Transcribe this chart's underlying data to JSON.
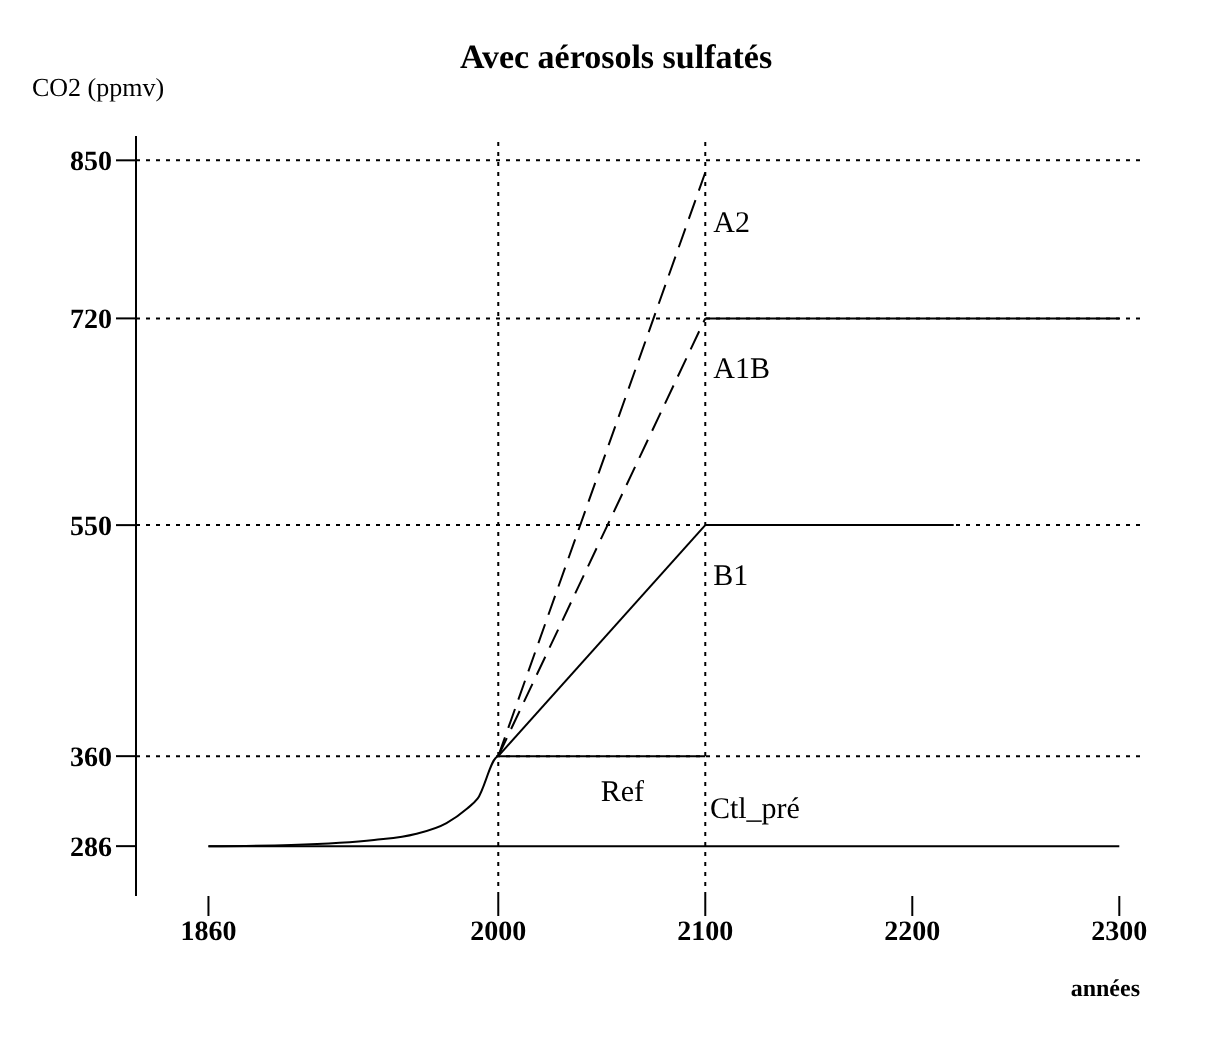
{
  "chart_data": {
    "type": "line",
    "title": "Avec aérosols sulfatés",
    "xlabel": "années",
    "ylabel": "CO2 (ppmv)",
    "xlim": [
      1825,
      2310
    ],
    "xticks": [
      1860,
      2000,
      2100,
      2200,
      2300
    ],
    "ylim": [
      245,
      870
    ],
    "yticks": [
      286,
      360,
      550,
      720,
      850
    ],
    "series": [
      {
        "name": "Ctl_pré",
        "color": "#000000",
        "x": [
          1860,
          2300
        ],
        "values": [
          286,
          286
        ],
        "line_style": "solid"
      },
      {
        "name": "Ref",
        "color": "#000000",
        "x": [
          1860,
          1900,
          1940,
          1960,
          1975,
          1985,
          1990,
          2000,
          2100
        ],
        "values": [
          286,
          287,
          291,
          296,
          305,
          317,
          325,
          360,
          360
        ],
        "line_style": "solid"
      },
      {
        "name": "A2",
        "color": "#000000",
        "x": [
          2000,
          2100
        ],
        "values": [
          360,
          840
        ],
        "line_style": "dashed"
      },
      {
        "name": "A1B",
        "color": "#000000",
        "x": [
          2000,
          2100
        ],
        "values": [
          360,
          720
        ],
        "line_style": "dashed"
      },
      {
        "color": "#000000",
        "x": [
          2100,
          2300
        ],
        "values": [
          720,
          720
        ],
        "line_style": "solid"
      },
      {
        "name": "B1",
        "color": "#000000",
        "x": [
          2000,
          2100
        ],
        "values": [
          360,
          550
        ],
        "line_style": "solid"
      },
      {
        "color": "#000000",
        "x": [
          2100,
          2220
        ],
        "values": [
          550,
          550
        ],
        "line_style": "solid"
      }
    ],
    "ref_lines": [
      {
        "axis": "x",
        "value": 2000,
        "line_style": "dotted"
      },
      {
        "axis": "x",
        "value": 2100,
        "line_style": "dotted"
      },
      {
        "axis": "y",
        "value": 360,
        "line_style": "dotted"
      },
      {
        "axis": "y",
        "value": 550,
        "line_style": "dotted"
      },
      {
        "axis": "y",
        "value": 720,
        "line_style": "dotted"
      },
      {
        "axis": "y",
        "value": 850,
        "line_style": "dotted"
      }
    ]
  }
}
